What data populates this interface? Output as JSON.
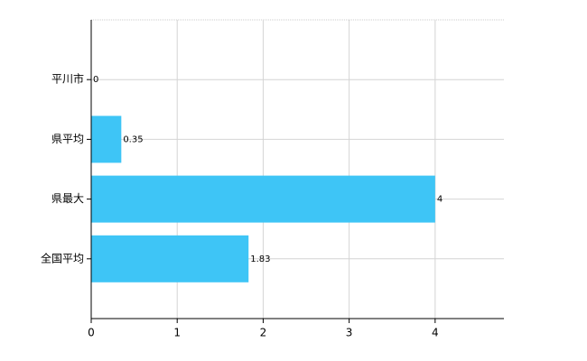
{
  "chart_data": {
    "type": "bar",
    "orientation": "horizontal",
    "categories": [
      "平川市",
      "県平均",
      "県最大",
      "全国平均"
    ],
    "values": [
      0,
      0.35,
      4,
      1.83
    ],
    "color": "#3ec5f6",
    "xlim": [
      0,
      4.8
    ],
    "xticks": [
      0,
      1,
      2,
      3,
      4
    ],
    "grid": true
  }
}
